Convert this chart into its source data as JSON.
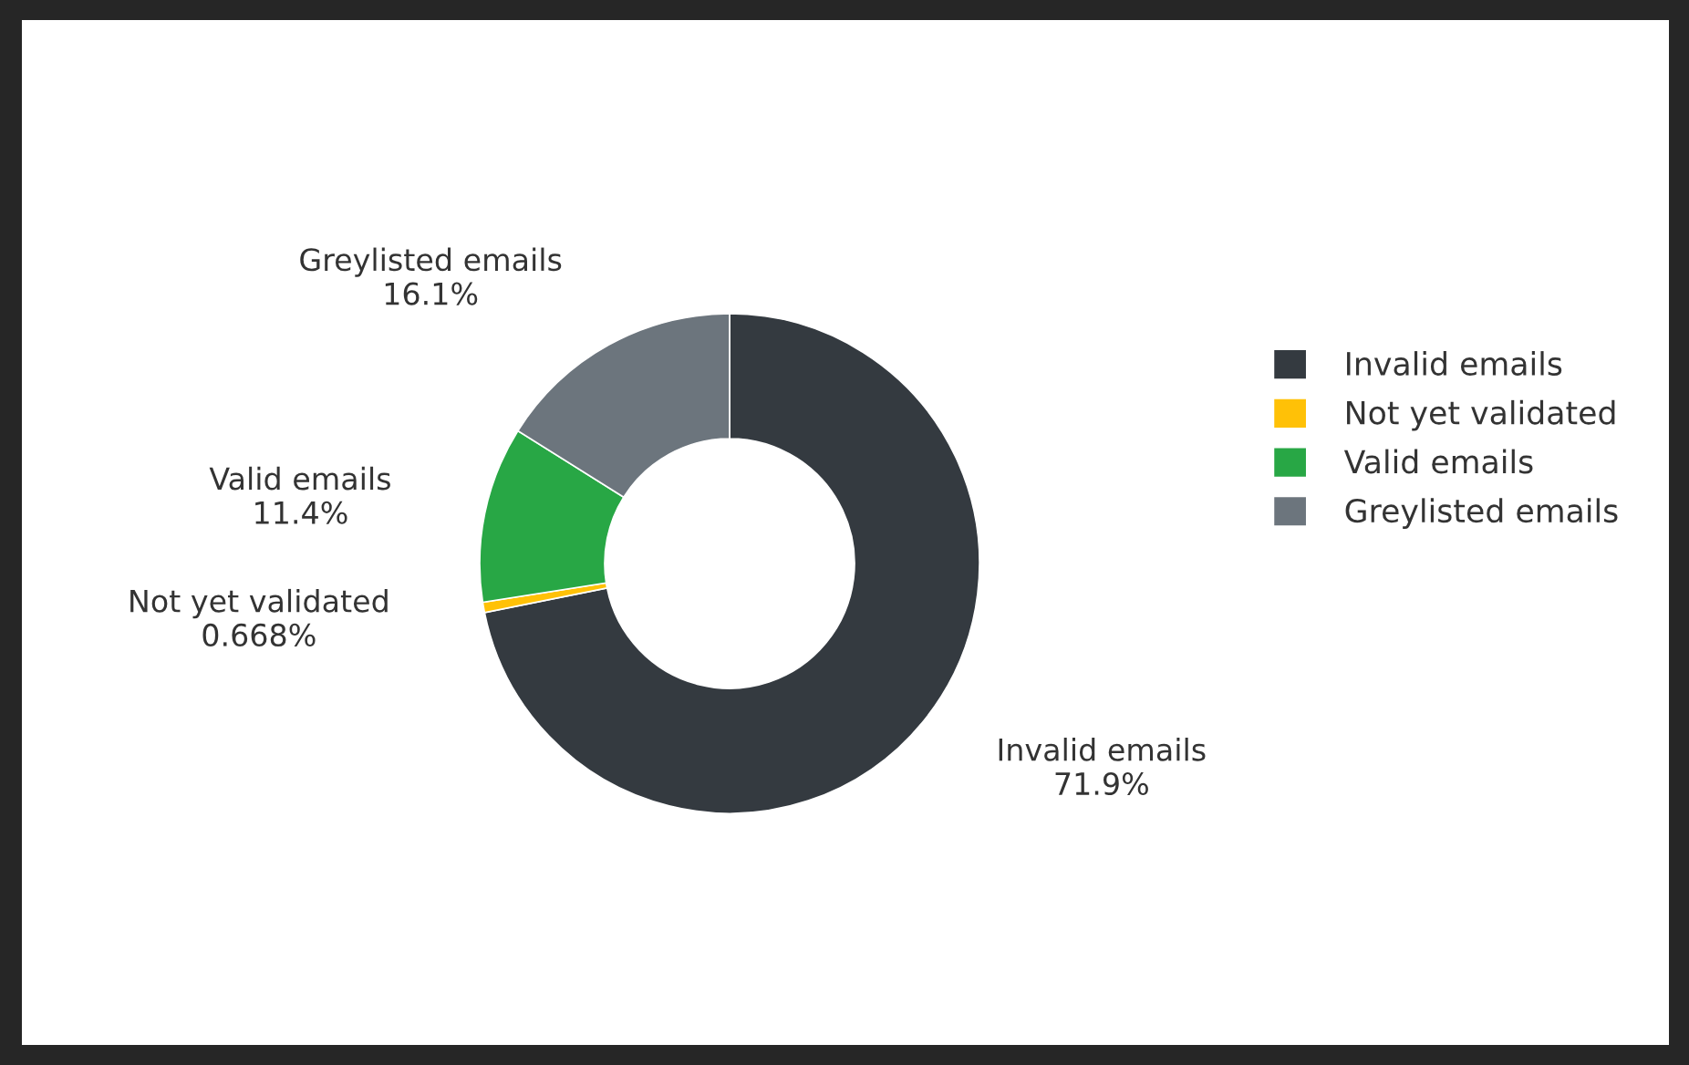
{
  "chart_data": {
    "type": "donut",
    "categories": [
      "Invalid emails",
      "Not yet validated",
      "Valid emails",
      "Greylisted emails"
    ],
    "values": [
      71.9,
      0.668,
      11.4,
      16.1
    ],
    "value_labels": [
      "71.9%",
      "0.668%",
      "11.4%",
      "16.1%"
    ],
    "colors": [
      "#343a40",
      "#ffc107",
      "#28a745",
      "#6c757d"
    ],
    "legend": "right"
  }
}
